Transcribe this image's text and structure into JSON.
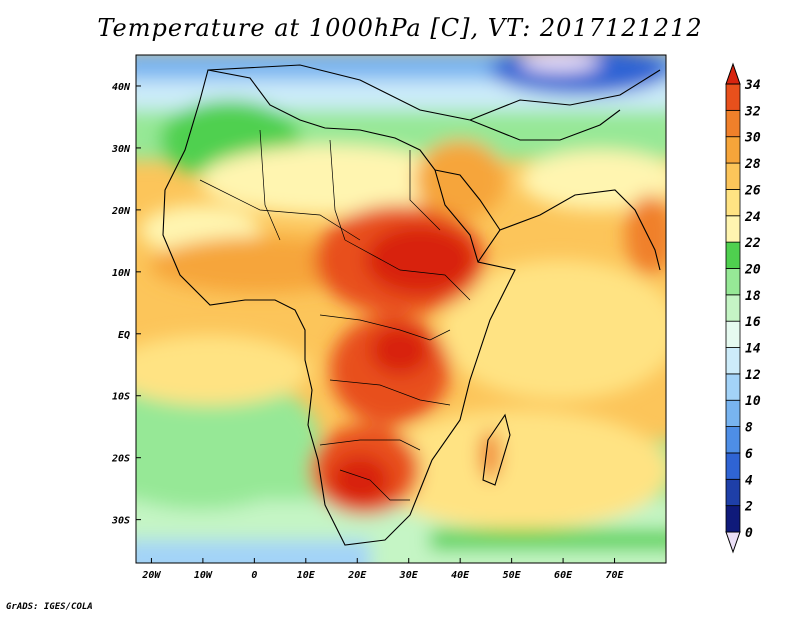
{
  "title": "Temperature at 1000hPa [C], VT: 2017121212",
  "credit": "GrADS: IGES/COLA",
  "map": {
    "lon_range": [
      -23,
      80
    ],
    "lat_range": [
      -37,
      45
    ],
    "lon_ticks": [
      {
        "value": -20,
        "label": "20W"
      },
      {
        "value": -10,
        "label": "10W"
      },
      {
        "value": 0,
        "label": "0"
      },
      {
        "value": 10,
        "label": "10E"
      },
      {
        "value": 20,
        "label": "20E"
      },
      {
        "value": 30,
        "label": "30E"
      },
      {
        "value": 40,
        "label": "40E"
      },
      {
        "value": 50,
        "label": "50E"
      },
      {
        "value": 60,
        "label": "60E"
      },
      {
        "value": 70,
        "label": "70E"
      }
    ],
    "lat_ticks": [
      {
        "value": 40,
        "label": "40N"
      },
      {
        "value": 30,
        "label": "30N"
      },
      {
        "value": 20,
        "label": "20N"
      },
      {
        "value": 10,
        "label": "10N"
      },
      {
        "value": 0,
        "label": "EQ"
      },
      {
        "value": -10,
        "label": "10S"
      },
      {
        "value": -20,
        "label": "20S"
      },
      {
        "value": -30,
        "label": "30S"
      }
    ]
  },
  "colorbar": {
    "levels": [
      0,
      2,
      4,
      6,
      8,
      10,
      12,
      14,
      16,
      18,
      20,
      22,
      24,
      26,
      28,
      30,
      32,
      34
    ],
    "colors": [
      "#ebe0f7",
      "#0f1a7a",
      "#1e3fa8",
      "#2f64d4",
      "#4e8ee6",
      "#78b4f0",
      "#a3d3f8",
      "#cdecfa",
      "#e6faf0",
      "#c5f5c5",
      "#96e896",
      "#4fd04f",
      "#fff5b0",
      "#ffe383",
      "#fcc55a",
      "#f6a53a",
      "#f0802a",
      "#e8501c",
      "#d8240f"
    ]
  }
}
